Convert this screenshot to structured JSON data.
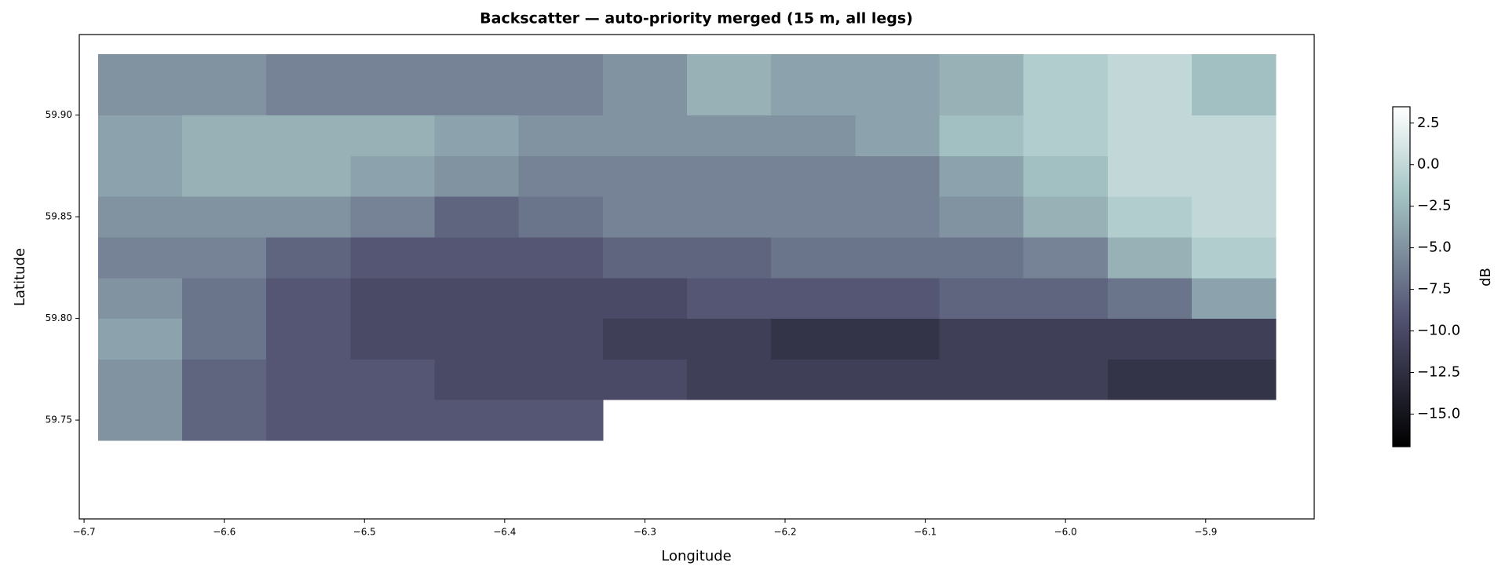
{
  "chart_data": {
    "type": "heatmap",
    "title": "Backscatter — auto-priority merged (15 m, all legs)",
    "x_label": "Longitude",
    "y_label": "Latitude",
    "colorbar_label": "dB",
    "colormap": "bone",
    "x_edges": [
      -6.69,
      -6.63,
      -6.57,
      -6.51,
      -6.45,
      -6.39,
      -6.33,
      -6.27,
      -6.21,
      -6.15,
      -6.09,
      -6.03,
      -5.97,
      -5.91,
      -5.85
    ],
    "y_edges": [
      59.74,
      59.76,
      59.78,
      59.8,
      59.82,
      59.84,
      59.86,
      59.88,
      59.9,
      59.93
    ],
    "z": [
      [
        -5,
        -8,
        -9,
        -9,
        -9,
        -9,
        null,
        null,
        null,
        null,
        null,
        null,
        null,
        null
      ],
      [
        -5,
        -8,
        -9,
        -9,
        -10,
        -10,
        -10,
        -11,
        -11,
        -11,
        -11,
        -11,
        -12,
        -12
      ],
      [
        -4,
        -7,
        -9,
        -10,
        -10,
        -10,
        -11,
        -11,
        -12,
        -12,
        -11,
        -11,
        -11,
        -11
      ],
      [
        -5,
        -7,
        -9,
        -10,
        -10,
        -10,
        -10,
        -9,
        -9,
        -9,
        -8,
        -8,
        -7,
        -4
      ],
      [
        -6,
        -6,
        -8,
        -9,
        -9,
        -9,
        -8,
        -8,
        -7,
        -7,
        -7,
        -6,
        -3,
        -1
      ],
      [
        -5,
        -5,
        -5,
        -6,
        -8,
        -7,
        -6,
        -6,
        -6,
        -6,
        -5,
        -3,
        -1,
        0
      ],
      [
        -4,
        -3,
        -3,
        -4,
        -5,
        -6,
        -6,
        -6,
        -6,
        -6,
        -4,
        -2,
        0,
        0
      ],
      [
        -4,
        -3,
        -3,
        -3,
        -4,
        -5,
        -5,
        -5,
        -5,
        -4,
        -2,
        -1,
        0,
        0
      ],
      [
        -5,
        -5,
        -6,
        -6,
        -6,
        -6,
        -5,
        -3,
        -4,
        -4,
        -3,
        -1,
        0,
        -2
      ]
    ],
    "xlim": [
      -6.7034,
      -5.8226
    ],
    "ylim": [
      59.7014,
      59.9396
    ],
    "clim": [
      -16.96,
      3.48
    ],
    "xticks": [
      {
        "value": -6.7,
        "label": "−6.7"
      },
      {
        "value": -6.6,
        "label": "−6.6"
      },
      {
        "value": -6.5,
        "label": "−6.5"
      },
      {
        "value": -6.4,
        "label": "−6.4"
      },
      {
        "value": -6.3,
        "label": "−6.3"
      },
      {
        "value": -6.2,
        "label": "−6.2"
      },
      {
        "value": -6.1,
        "label": "−6.1"
      },
      {
        "value": -6.0,
        "label": "−6.0"
      },
      {
        "value": -5.9,
        "label": "−5.9"
      }
    ],
    "yticks": [
      59.75,
      {
        "value": 59.8,
        "label": "59.80"
      },
      59.85,
      {
        "value": 59.9,
        "label": "59.90"
      }
    ],
    "cticks": [
      {
        "value": -15,
        "label": "−15.0"
      },
      {
        "value": -12.5,
        "label": "−12.5"
      },
      {
        "value": -10,
        "label": "−10.0"
      },
      {
        "value": -7.5,
        "label": "−7.5"
      },
      {
        "value": -5,
        "label": "−5.0"
      },
      {
        "value": -2.5,
        "label": "−2.5"
      },
      {
        "value": 0,
        "label": "0.0"
      },
      2.5
    ]
  }
}
